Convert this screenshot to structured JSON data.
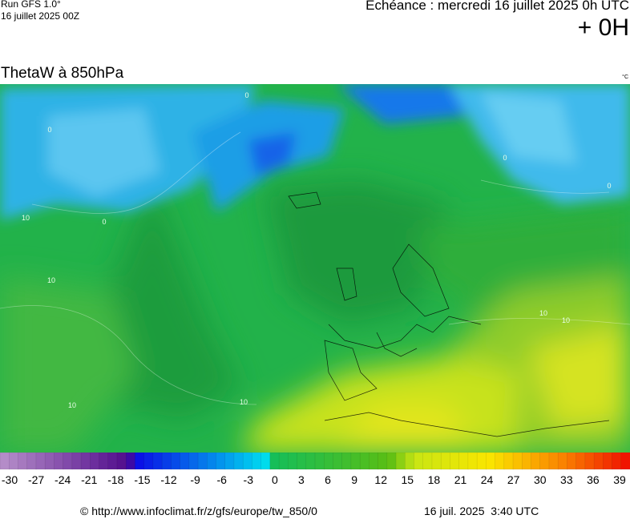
{
  "header": {
    "run": "Run GFS 1.0°",
    "run_date": "16 juillet 2025 00Z",
    "forecast": "Echéance : mercredi 16 juillet 2025 0h UTC",
    "offset": "+ 0H"
  },
  "map": {
    "title": "ThetaW à 850hPa",
    "unit": "°C",
    "contour_labels": [
      "0",
      "0",
      "0",
      "0",
      "0",
      "10",
      "10",
      "10",
      "10",
      "10",
      "10"
    ]
  },
  "colorbar": {
    "ticks": [
      -30,
      -27,
      -24,
      -21,
      -18,
      -15,
      -12,
      -9,
      -6,
      -3,
      0,
      3,
      6,
      9,
      12,
      15,
      18,
      21,
      24,
      27,
      30,
      33,
      36,
      39
    ]
  },
  "footer": {
    "source": "© http://www.infoclimat.fr/z/gfs/europe/tw_850/0",
    "generated": "16 juil. 2025  3:40 UTC"
  }
}
